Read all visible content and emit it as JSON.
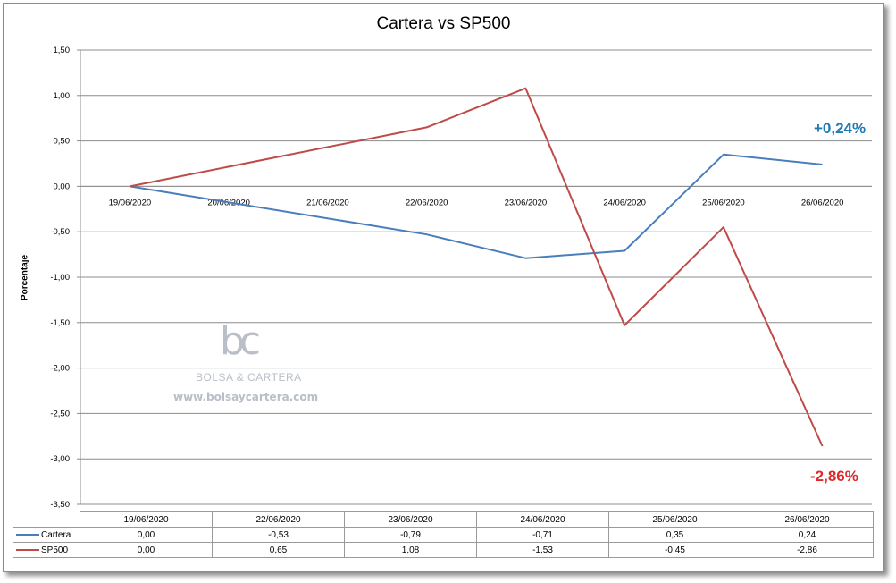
{
  "chart_data": {
    "type": "line",
    "title": "Cartera vs SP500",
    "ylabel": "Porcentaje",
    "xlabel": "",
    "ylim": [
      -3.5,
      1.5
    ],
    "yticks": [
      "1,50",
      "1,00",
      "0,50",
      "0,00",
      "-0,50",
      "-1,00",
      "-1,50",
      "-2,00",
      "-2,50",
      "-3,00",
      "-3,50"
    ],
    "x_axis_labels": [
      "19/06/2020",
      "20/06/2020",
      "21/06/2020",
      "22/06/2020",
      "23/06/2020",
      "24/06/2020",
      "25/06/2020",
      "26/06/2020"
    ],
    "grid": true,
    "series": [
      {
        "name": "Cartera",
        "color": "#4a7ebb",
        "points": [
          [
            "19/06/2020",
            0.0
          ],
          [
            "22/06/2020",
            -0.53
          ],
          [
            "23/06/2020",
            -0.79
          ],
          [
            "24/06/2020",
            -0.71
          ],
          [
            "25/06/2020",
            0.35
          ],
          [
            "26/06/2020",
            0.24
          ]
        ]
      },
      {
        "name": "SP500",
        "color": "#be4b48",
        "points": [
          [
            "19/06/2020",
            0.0
          ],
          [
            "22/06/2020",
            0.65
          ],
          [
            "23/06/2020",
            1.08
          ],
          [
            "24/06/2020",
            -1.53
          ],
          [
            "25/06/2020",
            -0.45
          ],
          [
            "26/06/2020",
            -2.86
          ]
        ]
      }
    ],
    "annotations": [
      {
        "series": "Cartera",
        "text": "+0,24%",
        "color": "#1f7bb3"
      },
      {
        "series": "SP500",
        "text": "-2,86%",
        "color": "#e0282c"
      }
    ],
    "data_table": {
      "categories": [
        "19/06/2020",
        "22/06/2020",
        "23/06/2020",
        "24/06/2020",
        "25/06/2020",
        "26/06/2020"
      ],
      "rows": [
        {
          "label": "Cartera",
          "values": [
            "0,00",
            "-0,53",
            "-0,79",
            "-0,71",
            "0,35",
            "0,24"
          ]
        },
        {
          "label": "SP500",
          "values": [
            "0,00",
            "0,65",
            "1,08",
            "-1,53",
            "-0,45",
            "-2,86"
          ]
        }
      ]
    }
  },
  "watermark": {
    "logo": "bc",
    "name": "BOLSA & CARTERA",
    "url": "www.bolsaycartera.com"
  }
}
